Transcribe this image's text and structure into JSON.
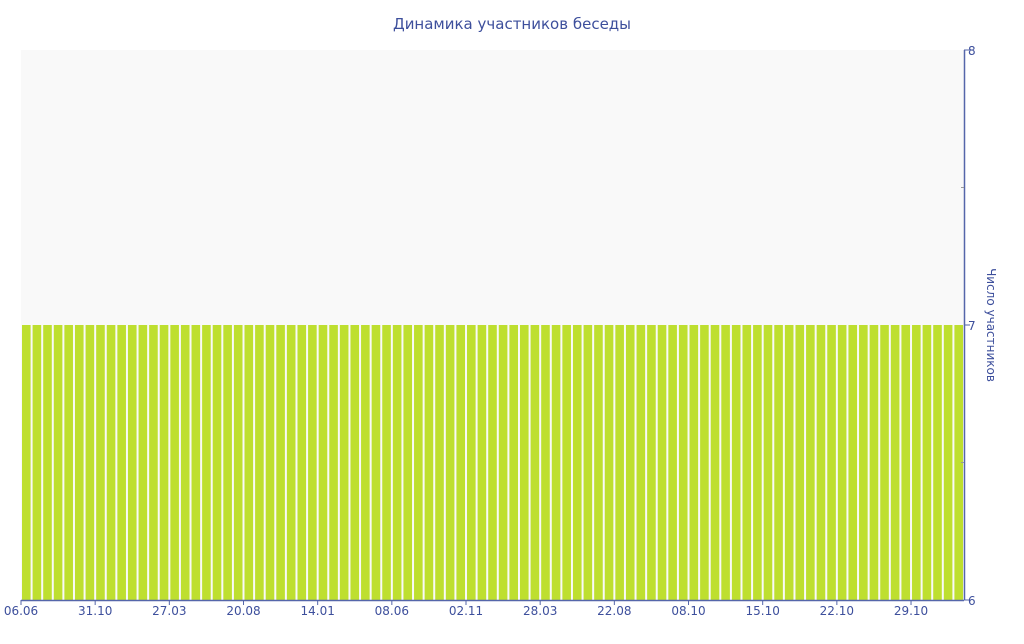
{
  "chart_data": {
    "type": "bar",
    "title": "Динамика участников беседы",
    "ylabel": "Число участников",
    "xlabel": "",
    "ylim": [
      6,
      8
    ],
    "y_ticks": [
      "6",
      "7",
      "8"
    ],
    "y_axis_side": "right",
    "x_tick_labels": [
      "06.06",
      "31.10",
      "27.03",
      "20.08",
      "14.01",
      "08.06",
      "02.11",
      "28.03",
      "22.08",
      "08.10",
      "15.10",
      "22.10",
      "29.10"
    ],
    "x_tick_every_n_bars": 7,
    "values": [
      7,
      7,
      7,
      7,
      7,
      7,
      7,
      7,
      7,
      7,
      7,
      7,
      7,
      7,
      7,
      7,
      7,
      7,
      7,
      7,
      7,
      7,
      7,
      7,
      7,
      7,
      7,
      7,
      7,
      7,
      7,
      7,
      7,
      7,
      7,
      7,
      7,
      7,
      7,
      7,
      7,
      7,
      7,
      7,
      7,
      7,
      7,
      7,
      7,
      7,
      7,
      7,
      7,
      7,
      7,
      7,
      7,
      7,
      7,
      7,
      7,
      7,
      7,
      7,
      7,
      7,
      7,
      7,
      7,
      7,
      7,
      7,
      7,
      7,
      7,
      7,
      7,
      7,
      7,
      7,
      7,
      7,
      7,
      7,
      7,
      7,
      7,
      7,
      7
    ],
    "grid": false,
    "legend": "none",
    "colors": {
      "bar": "#bedf2f",
      "plot_background": "#f9f9f9",
      "axis": "#5566aa",
      "text": "#3d4f9c"
    }
  }
}
